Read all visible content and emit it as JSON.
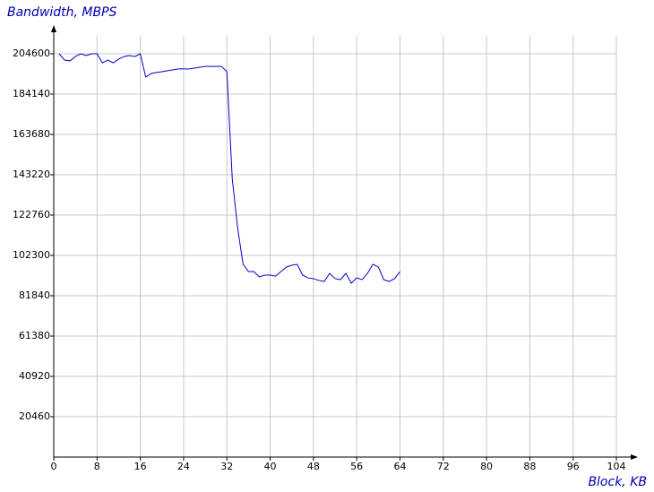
{
  "chart_data": {
    "type": "line",
    "y_label": "Bandwidth, MBPS",
    "x_label": "Block, KB",
    "x": [
      1,
      2,
      3,
      4,
      5,
      6,
      7,
      8,
      9,
      10,
      11,
      12,
      13,
      14,
      15,
      16,
      17,
      18,
      19,
      20,
      21,
      22,
      23,
      24,
      25,
      26,
      27,
      28,
      29,
      30,
      31,
      32,
      33,
      34,
      35,
      36,
      37,
      38,
      39,
      40,
      41,
      42,
      43,
      44,
      45,
      46,
      47,
      48,
      49,
      50,
      51,
      52,
      53,
      54,
      55,
      56,
      57,
      58,
      59,
      60,
      61,
      62,
      63,
      64
    ],
    "series": [
      {
        "color": "#0000cc",
        "values": [
          204600,
          201400,
          201000,
          203200,
          204600,
          203700,
          204600,
          204600,
          200000,
          201400,
          200000,
          201900,
          203200,
          203700,
          203200,
          204600,
          192800,
          194600,
          195100,
          195500,
          196000,
          196400,
          196900,
          196900,
          196900,
          197300,
          197800,
          198200,
          198200,
          198200,
          198200,
          195500,
          141000,
          116000,
          97800,
          94100,
          94100,
          91400,
          92300,
          92300,
          91800,
          94100,
          96400,
          97300,
          97800,
          92300,
          90900,
          90500,
          89600,
          89100,
          93200,
          90500,
          90000,
          93200,
          88200,
          90900,
          90000,
          93200,
          97800,
          96400,
          90000,
          89100,
          90500,
          94100
        ]
      }
    ],
    "xlim": [
      0,
      104
    ],
    "xticks": [
      0,
      8,
      16,
      24,
      32,
      40,
      48,
      56,
      64,
      72,
      80,
      88,
      96,
      104
    ],
    "ylim": [
      0,
      204600
    ],
    "yticks": [
      20460,
      40920,
      61380,
      81840,
      102300,
      122760,
      143220,
      163680,
      184140,
      204600
    ],
    "grid": true
  }
}
